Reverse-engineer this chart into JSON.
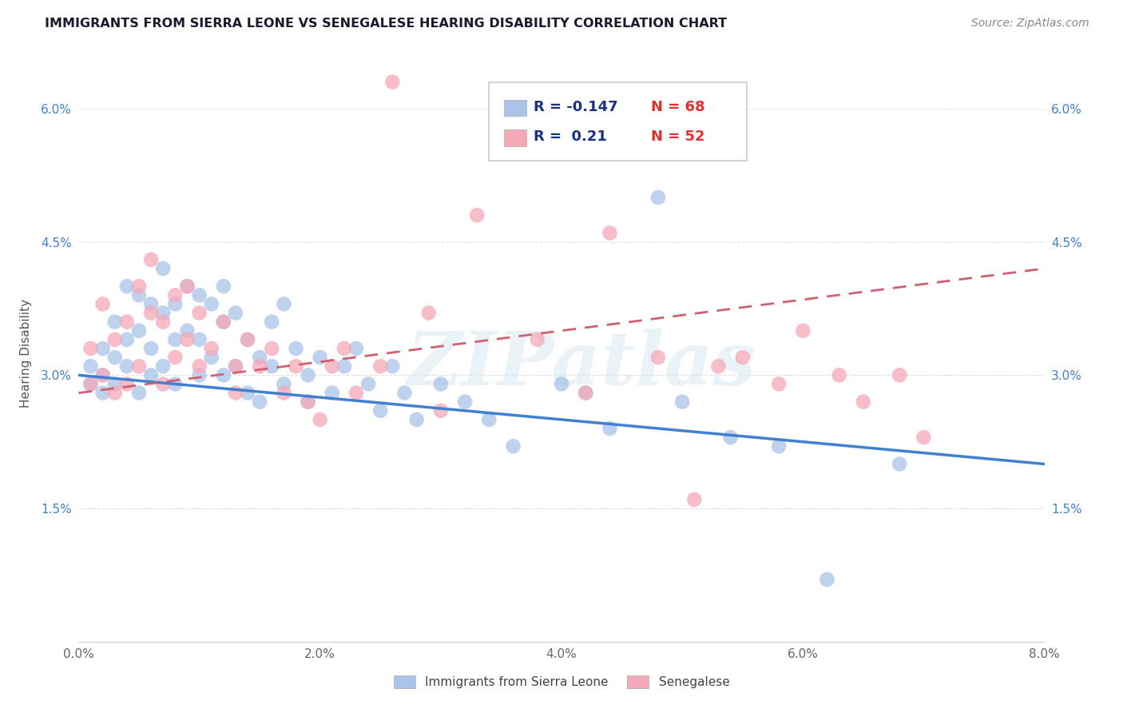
{
  "title": "IMMIGRANTS FROM SIERRA LEONE VS SENEGALESE HEARING DISABILITY CORRELATION CHART",
  "source": "Source: ZipAtlas.com",
  "ylabel": "Hearing Disability",
  "xlim": [
    0.0,
    0.08
  ],
  "ylim": [
    0.0,
    0.065
  ],
  "yticks": [
    0.015,
    0.03,
    0.045,
    0.06
  ],
  "ytick_labels": [
    "1.5%",
    "3.0%",
    "4.5%",
    "6.0%"
  ],
  "xticks": [
    0.0,
    0.02,
    0.04,
    0.06,
    0.08
  ],
  "xtick_labels": [
    "0.0%",
    "",
    "",
    "",
    "8.0%"
  ],
  "xtick_labels_full": [
    "0.0%",
    "2.0%",
    "4.0%",
    "6.0%",
    "8.0%"
  ],
  "legend1_label": "Immigrants from Sierra Leone",
  "legend2_label": "Senegalese",
  "r1": -0.147,
  "n1": 68,
  "r2": 0.21,
  "n2": 52,
  "color1": "#a8c4e8",
  "color2": "#f5a8b8",
  "line1_color": "#4080d0",
  "line2_color": "#d06070",
  "title_color": "#1a1a2e",
  "source_color": "#888888",
  "axis_label_color": "#4080d0",
  "background_color": "#ffffff",
  "grid_color": "#e0e0e0",
  "watermark": "ZIPatlas",
  "sl_line_start_y": 0.03,
  "sl_line_end_y": 0.02,
  "sen_line_start_y": 0.028,
  "sen_line_end_y": 0.042,
  "sierra_leone_x": [
    0.001,
    0.001,
    0.002,
    0.002,
    0.002,
    0.003,
    0.003,
    0.003,
    0.004,
    0.004,
    0.004,
    0.005,
    0.005,
    0.005,
    0.006,
    0.006,
    0.006,
    0.007,
    0.007,
    0.007,
    0.008,
    0.008,
    0.008,
    0.009,
    0.009,
    0.01,
    0.01,
    0.01,
    0.011,
    0.011,
    0.012,
    0.012,
    0.012,
    0.013,
    0.013,
    0.014,
    0.014,
    0.015,
    0.015,
    0.016,
    0.016,
    0.017,
    0.017,
    0.018,
    0.019,
    0.019,
    0.02,
    0.021,
    0.022,
    0.023,
    0.024,
    0.025,
    0.026,
    0.027,
    0.028,
    0.03,
    0.032,
    0.034,
    0.036,
    0.04,
    0.042,
    0.044,
    0.048,
    0.05,
    0.054,
    0.058,
    0.062,
    0.068
  ],
  "sierra_leone_y": [
    0.029,
    0.031,
    0.03,
    0.028,
    0.033,
    0.036,
    0.032,
    0.029,
    0.04,
    0.034,
    0.031,
    0.039,
    0.035,
    0.028,
    0.038,
    0.033,
    0.03,
    0.042,
    0.037,
    0.031,
    0.038,
    0.034,
    0.029,
    0.04,
    0.035,
    0.039,
    0.034,
    0.03,
    0.038,
    0.032,
    0.04,
    0.036,
    0.03,
    0.037,
    0.031,
    0.034,
    0.028,
    0.032,
    0.027,
    0.036,
    0.031,
    0.038,
    0.029,
    0.033,
    0.03,
    0.027,
    0.032,
    0.028,
    0.031,
    0.033,
    0.029,
    0.026,
    0.031,
    0.028,
    0.025,
    0.029,
    0.027,
    0.025,
    0.022,
    0.029,
    0.028,
    0.024,
    0.05,
    0.027,
    0.023,
    0.022,
    0.007,
    0.02
  ],
  "senegalese_x": [
    0.001,
    0.001,
    0.002,
    0.002,
    0.003,
    0.003,
    0.004,
    0.004,
    0.005,
    0.005,
    0.006,
    0.006,
    0.007,
    0.007,
    0.008,
    0.008,
    0.009,
    0.009,
    0.01,
    0.01,
    0.011,
    0.012,
    0.013,
    0.013,
    0.014,
    0.015,
    0.016,
    0.017,
    0.018,
    0.019,
    0.02,
    0.021,
    0.022,
    0.023,
    0.025,
    0.026,
    0.029,
    0.03,
    0.033,
    0.038,
    0.042,
    0.044,
    0.048,
    0.051,
    0.053,
    0.055,
    0.058,
    0.06,
    0.063,
    0.065,
    0.068,
    0.07
  ],
  "senegalese_y": [
    0.029,
    0.033,
    0.038,
    0.03,
    0.034,
    0.028,
    0.036,
    0.029,
    0.04,
    0.031,
    0.043,
    0.037,
    0.036,
    0.029,
    0.039,
    0.032,
    0.04,
    0.034,
    0.037,
    0.031,
    0.033,
    0.036,
    0.031,
    0.028,
    0.034,
    0.031,
    0.033,
    0.028,
    0.031,
    0.027,
    0.025,
    0.031,
    0.033,
    0.028,
    0.031,
    0.063,
    0.037,
    0.026,
    0.048,
    0.034,
    0.028,
    0.046,
    0.032,
    0.016,
    0.031,
    0.032,
    0.029,
    0.035,
    0.03,
    0.027,
    0.03,
    0.023
  ]
}
